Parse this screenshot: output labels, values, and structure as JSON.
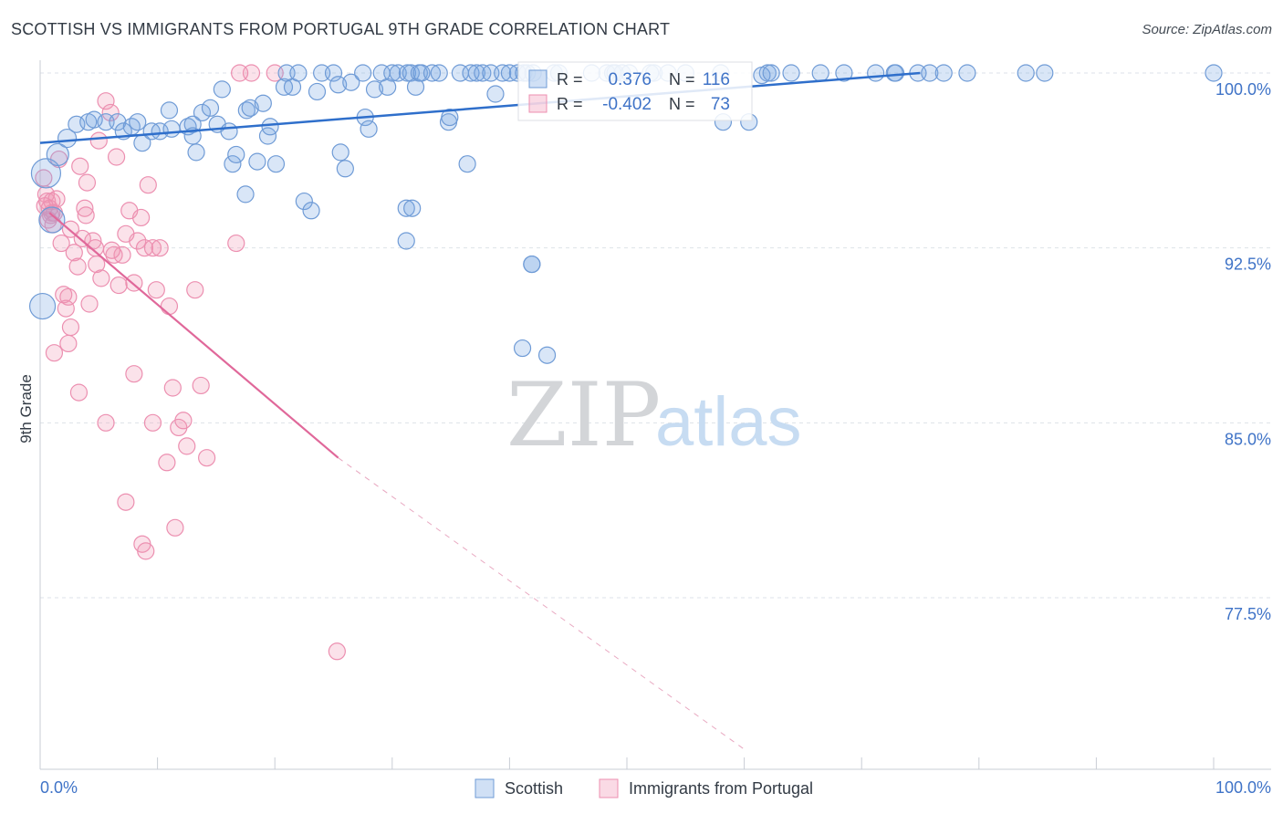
{
  "title": "SCOTTISH VS IMMIGRANTS FROM PORTUGAL 9TH GRADE CORRELATION CHART",
  "source": "Source: ZipAtlas.com",
  "watermark": {
    "zip": "ZIP",
    "atlas": "atlas"
  },
  "colors": {
    "blue_fill": "rgba(120,165,225,0.28)",
    "blue_stroke": "#6f9bd6",
    "blue_line": "#2f6fcb",
    "pink_fill": "rgba(240,150,180,0.28)",
    "pink_stroke": "#ec8fb0",
    "pink_line": "#e0689a",
    "axis_text": "#3f73c7",
    "grid": "#dde2e8"
  },
  "chart_data": {
    "type": "scatter",
    "title": "SCOTTISH VS IMMIGRANTS FROM PORTUGAL 9TH GRADE CORRELATION CHART",
    "ylabel": "9th Grade",
    "xlim": [
      0,
      100
    ],
    "ylim": [
      70.5,
      101.5
    ],
    "x_tick_labels": [
      "0.0%",
      "100.0%"
    ],
    "y_ticks": [
      {
        "value": 100.0,
        "label": "100.0%"
      },
      {
        "value": 92.5,
        "label": "92.5%"
      },
      {
        "value": 85.0,
        "label": "85.0%"
      },
      {
        "value": 77.5,
        "label": "77.5%"
      }
    ],
    "legend_stats": [
      {
        "r_label": "R =",
        "r": "0.376",
        "n_label": "N =",
        "n": "116"
      },
      {
        "r_label": "R =",
        "r": "-0.402",
        "n_label": "N =",
        "n": "73"
      }
    ],
    "series": [
      {
        "name": "Scottish",
        "color": "#6f9bd6",
        "trend": {
          "x": [
            0,
            75
          ],
          "y": [
            97.0,
            100.0
          ]
        },
        "points": [
          [
            0.5,
            95.7
          ],
          [
            1.5,
            96.5
          ],
          [
            1.0,
            93.7
          ],
          [
            0.2,
            90.0
          ],
          [
            2.3,
            97.2
          ],
          [
            3.1,
            97.8
          ],
          [
            4.1,
            97.9
          ],
          [
            4.6,
            98.0
          ],
          [
            5.6,
            97.9
          ],
          [
            6.6,
            97.9
          ],
          [
            7.1,
            97.5
          ],
          [
            7.8,
            97.7
          ],
          [
            8.3,
            97.9
          ],
          [
            8.7,
            97.0
          ],
          [
            9.5,
            97.5
          ],
          [
            10.2,
            97.5
          ],
          [
            11.2,
            97.6
          ],
          [
            11.0,
            98.4
          ],
          [
            12.6,
            97.7
          ],
          [
            13.0,
            97.8
          ],
          [
            13.8,
            98.3
          ],
          [
            13.0,
            97.3
          ],
          [
            13.3,
            96.6
          ],
          [
            14.5,
            98.5
          ],
          [
            15.1,
            97.8
          ],
          [
            15.5,
            99.3
          ],
          [
            16.1,
            97.5
          ],
          [
            16.4,
            96.1
          ],
          [
            16.7,
            96.5
          ],
          [
            17.5,
            94.8
          ],
          [
            17.6,
            98.4
          ],
          [
            17.9,
            98.5
          ],
          [
            18.5,
            96.2
          ],
          [
            19.0,
            98.7
          ],
          [
            19.4,
            97.3
          ],
          [
            19.6,
            97.7
          ],
          [
            20.1,
            96.1
          ],
          [
            20.8,
            99.4
          ],
          [
            21.0,
            100.0
          ],
          [
            21.5,
            99.4
          ],
          [
            22.0,
            100.0
          ],
          [
            22.5,
            94.5
          ],
          [
            23.1,
            94.1
          ],
          [
            23.6,
            99.2
          ],
          [
            24.0,
            100.0
          ],
          [
            25.0,
            100.0
          ],
          [
            25.4,
            99.5
          ],
          [
            25.6,
            96.6
          ],
          [
            26.0,
            95.9
          ],
          [
            26.5,
            99.6
          ],
          [
            27.5,
            100.0
          ],
          [
            27.7,
            98.1
          ],
          [
            28.0,
            97.6
          ],
          [
            28.5,
            99.3
          ],
          [
            29.1,
            100.0
          ],
          [
            29.6,
            99.4
          ],
          [
            30.0,
            100.0
          ],
          [
            30.5,
            100.0
          ],
          [
            31.3,
            100.0
          ],
          [
            31.6,
            100.0
          ],
          [
            32.0,
            99.4
          ],
          [
            32.3,
            100.0
          ],
          [
            31.2,
            94.2
          ],
          [
            31.7,
            94.2
          ],
          [
            31.2,
            92.8
          ],
          [
            32.5,
            100.0
          ],
          [
            33.4,
            100.0
          ],
          [
            34.0,
            100.0
          ],
          [
            34.8,
            97.9
          ],
          [
            34.9,
            98.1
          ],
          [
            35.8,
            100.0
          ],
          [
            36.4,
            96.1
          ],
          [
            36.7,
            100.0
          ],
          [
            37.2,
            100.0
          ],
          [
            37.7,
            100.0
          ],
          [
            38.4,
            100.0
          ],
          [
            38.8,
            99.1
          ],
          [
            39.4,
            100.0
          ],
          [
            40.0,
            100.0
          ],
          [
            40.7,
            100.0
          ],
          [
            41.2,
            100.0
          ],
          [
            41.5,
            100.0
          ],
          [
            42.0,
            100.0
          ],
          [
            43.8,
            100.0
          ],
          [
            44.2,
            100.0
          ],
          [
            47.0,
            100.0
          ],
          [
            48.3,
            100.0
          ],
          [
            48.8,
            100.0
          ],
          [
            49.0,
            100.0
          ],
          [
            49.6,
            100.0
          ],
          [
            50.2,
            100.0
          ],
          [
            52.0,
            100.0
          ],
          [
            52.3,
            100.0
          ],
          [
            53.5,
            100.0
          ],
          [
            55.0,
            100.0
          ],
          [
            58.0,
            100.0
          ],
          [
            62.0,
            100.0
          ],
          [
            58.2,
            97.9
          ],
          [
            60.4,
            97.9
          ],
          [
            61.5,
            99.9
          ],
          [
            62.3,
            100.0
          ],
          [
            64.0,
            100.0
          ],
          [
            66.5,
            100.0
          ],
          [
            68.5,
            100.0
          ],
          [
            71.2,
            100.0
          ],
          [
            72.8,
            100.0
          ],
          [
            72.9,
            100.0
          ],
          [
            74.8,
            100.0
          ],
          [
            75.8,
            100.0
          ],
          [
            77.0,
            100.0
          ],
          [
            79.0,
            100.0
          ],
          [
            84.0,
            100.0
          ],
          [
            85.6,
            100.0
          ],
          [
            100.0,
            100.0
          ],
          [
            41.9,
            91.8
          ],
          [
            41.9,
            91.8
          ],
          [
            41.1,
            88.2
          ],
          [
            43.2,
            87.9
          ]
        ],
        "radii": {
          "0": 16,
          "1": 12,
          "2": 14,
          "3": 14,
          "4": 10
        }
      },
      {
        "name": "Immigrants from Portugal",
        "color": "#ec8fb0",
        "trend": {
          "x": [
            0.8,
            25.4
          ],
          "y": [
            94.0,
            83.5
          ],
          "dashed_to": {
            "x": 60.0,
            "y": 71.0
          }
        },
        "points": [
          [
            0.3,
            95.5
          ],
          [
            0.5,
            94.8
          ],
          [
            0.6,
            94.5
          ],
          [
            0.8,
            94.2
          ],
          [
            0.9,
            93.9
          ],
          [
            1.0,
            94.5
          ],
          [
            1.2,
            94.0
          ],
          [
            1.4,
            94.6
          ],
          [
            1.6,
            96.3
          ],
          [
            1.8,
            92.7
          ],
          [
            2.0,
            90.5
          ],
          [
            2.2,
            89.9
          ],
          [
            2.4,
            88.4
          ],
          [
            2.6,
            93.3
          ],
          [
            2.9,
            92.3
          ],
          [
            3.2,
            91.7
          ],
          [
            3.4,
            96.0
          ],
          [
            3.6,
            92.9
          ],
          [
            3.8,
            94.2
          ],
          [
            4.0,
            95.3
          ],
          [
            4.2,
            90.1
          ],
          [
            4.5,
            92.8
          ],
          [
            4.7,
            92.5
          ],
          [
            5.0,
            97.1
          ],
          [
            5.2,
            91.2
          ],
          [
            5.6,
            98.8
          ],
          [
            6.0,
            98.3
          ],
          [
            6.3,
            92.2
          ],
          [
            6.5,
            96.4
          ],
          [
            6.7,
            90.9
          ],
          [
            7.0,
            92.2
          ],
          [
            7.3,
            93.1
          ],
          [
            7.6,
            94.1
          ],
          [
            8.0,
            91.0
          ],
          [
            8.3,
            92.8
          ],
          [
            8.6,
            93.8
          ],
          [
            8.9,
            92.5
          ],
          [
            9.2,
            95.2
          ],
          [
            9.6,
            92.5
          ],
          [
            9.9,
            90.7
          ],
          [
            10.2,
            92.5
          ],
          [
            11.0,
            90.0
          ],
          [
            11.3,
            86.5
          ],
          [
            11.8,
            84.8
          ],
          [
            12.2,
            85.1
          ],
          [
            12.5,
            84.0
          ],
          [
            13.2,
            90.7
          ],
          [
            13.7,
            86.6
          ],
          [
            14.2,
            83.5
          ],
          [
            16.7,
            92.7
          ],
          [
            18.0,
            100.0
          ],
          [
            20.0,
            100.0
          ],
          [
            17.0,
            100.0
          ],
          [
            1.2,
            88.0
          ],
          [
            2.6,
            89.1
          ],
          [
            3.3,
            86.3
          ],
          [
            5.6,
            85.0
          ],
          [
            7.3,
            81.6
          ],
          [
            8.0,
            87.1
          ],
          [
            8.7,
            79.8
          ],
          [
            9.0,
            79.5
          ],
          [
            9.6,
            85.0
          ],
          [
            10.8,
            83.3
          ],
          [
            11.5,
            80.5
          ],
          [
            25.3,
            75.2
          ],
          [
            1.0,
            94.0
          ],
          [
            0.4,
            94.3
          ],
          [
            0.7,
            93.7
          ],
          [
            1.1,
            93.5
          ],
          [
            2.4,
            90.4
          ],
          [
            3.9,
            93.9
          ],
          [
            4.8,
            91.8
          ],
          [
            6.1,
            92.4
          ]
        ]
      }
    ],
    "legend": {
      "position": "bottom",
      "entries": [
        "Scottish",
        "Immigrants from Portugal"
      ]
    }
  }
}
